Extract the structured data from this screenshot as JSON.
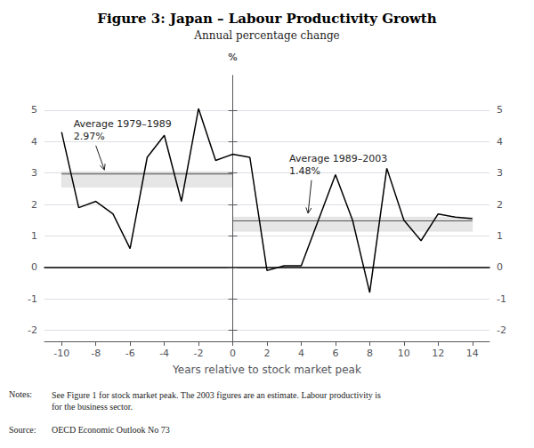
{
  "chart_data": {
    "type": "line",
    "title": "Figure 3: Japan – Labour Productivity Growth",
    "subtitle": "Annual percentage change",
    "xlabel": "Years relative to stock market peak",
    "ylabel": "%",
    "x": [
      -10,
      -9,
      -8,
      -7,
      -6,
      -5,
      -4,
      -3,
      -2,
      -1,
      0,
      1,
      2,
      3,
      4,
      5,
      6,
      7,
      8,
      9,
      10,
      11,
      12,
      13,
      14
    ],
    "values": [
      4.3,
      1.9,
      2.1,
      1.7,
      0.6,
      3.5,
      4.2,
      2.1,
      5.05,
      3.4,
      3.6,
      3.5,
      -0.1,
      0.05,
      0.05,
      1.5,
      2.95,
      1.5,
      -0.8,
      3.15,
      1.5,
      0.85,
      1.7,
      1.6,
      1.55
    ],
    "color": "#000000",
    "xlim": [
      -11,
      15
    ],
    "xticks": [
      -10,
      -8,
      -6,
      -4,
      -2,
      0,
      2,
      4,
      6,
      8,
      10,
      12,
      14
    ],
    "ylim": [
      -2.35,
      6.1
    ],
    "yticks": [
      -2,
      -1,
      0,
      1,
      2,
      3,
      4,
      5
    ],
    "y2lim": [
      -2.35,
      6.1
    ],
    "y2ticks": [
      -2,
      -1,
      0,
      1,
      2,
      3,
      4,
      5
    ],
    "grid": true,
    "averages": [
      {
        "x": [
          -10,
          0
        ],
        "value": 2.97,
        "band": [
          2.55,
          3.05
        ],
        "color": "#555555"
      },
      {
        "x": [
          0,
          14
        ],
        "value": 1.48,
        "band": [
          1.15,
          1.6
        ],
        "color": "#555555"
      }
    ],
    "annotations": [
      {
        "text": [
          "Average 1979–1989",
          "2.97%"
        ],
        "x": -9.3,
        "y": 4.75,
        "arrow_x": -7.5,
        "arrow_y": 3.1
      },
      {
        "text": [
          "Average 1989–2003",
          "1.48%"
        ],
        "x": 3.3,
        "y": 3.65,
        "arrow_x": 4.4,
        "arrow_y": 1.72
      }
    ],
    "notes_label": "Notes:",
    "notes": "See Figure 1 for stock market peak. The 2003 figures are an estimate. Labour productivity is\nfor the business sector.",
    "source_label": "Source:",
    "source": "OECD Economic Outlook No 73"
  }
}
